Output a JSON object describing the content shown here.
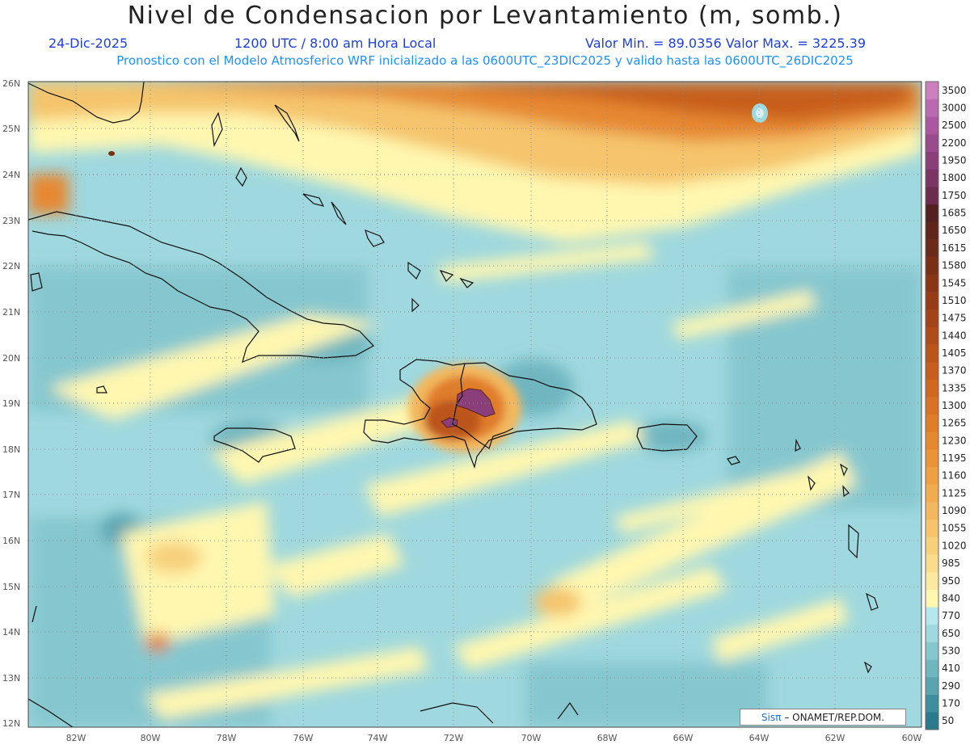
{
  "header": {
    "title": "Nivel de Condensacion por Levantamiento (m, somb.)",
    "date": "24-Dic-2025",
    "time": "1200 UTC / 8:00 am Hora Local",
    "minmax": "Valor Min. = 89.0356   Valor Max. = 3225.39",
    "model_line": "Pronostico con el Modelo Atmosferico WRF inicializado a las 0600UTC_23DIC2025 y valido hasta las  0600UTC_26DIC2025"
  },
  "map": {
    "lon_range": [
      -83.2,
      -59.9
    ],
    "lat_range": [
      11.9,
      26.1
    ],
    "lon_ticks": [
      "82W",
      "80W",
      "78W",
      "76W",
      "74W",
      "72W",
      "70W",
      "68W",
      "66W",
      "64W",
      "62W",
      "60W"
    ],
    "lat_ticks": [
      "12N",
      "13N",
      "14N",
      "15N",
      "16N",
      "17N",
      "18N",
      "19N",
      "20N",
      "21N",
      "22N",
      "23N",
      "24N",
      "25N",
      "26N"
    ],
    "land_icon": "coastline-outline"
  },
  "colorbar": {
    "levels": [
      "50",
      "170",
      "290",
      "410",
      "530",
      "650",
      "770",
      "840",
      "950",
      "985",
      "1020",
      "1055",
      "1090",
      "1125",
      "1160",
      "1195",
      "1230",
      "1265",
      "1300",
      "1335",
      "1370",
      "1405",
      "1440",
      "1475",
      "1510",
      "1545",
      "1580",
      "1615",
      "1650",
      "1685",
      "1750",
      "1800",
      "1950",
      "2200",
      "2500",
      "3000",
      "3500"
    ],
    "colors": [
      "#2a7b8e",
      "#3f8e9d",
      "#5aa4b0",
      "#6fb6c0",
      "#86c7cf",
      "#9fd8de",
      "#b5e7ec",
      "#fff7b0",
      "#fbe9a0",
      "#f9dc8c",
      "#f7d07c",
      "#f5c46c",
      "#f3b85d",
      "#f0ac4e",
      "#eea042",
      "#ea9438",
      "#e68830",
      "#e07d29",
      "#d97224",
      "#d06820",
      "#c75e1d",
      "#bc551b",
      "#b04c1a",
      "#a34418",
      "#963d17",
      "#883616",
      "#7a3016",
      "#6c2a18",
      "#5e251b",
      "#52201e",
      "#6b2d4f",
      "#7a3565",
      "#8a3e7a",
      "#9b4a8e",
      "#ab58a0",
      "#bb6ab0",
      "#cc80c0"
    ]
  },
  "credit": {
    "logo": "Sisπ",
    "text": "– ONAMET/REP.DOM."
  }
}
